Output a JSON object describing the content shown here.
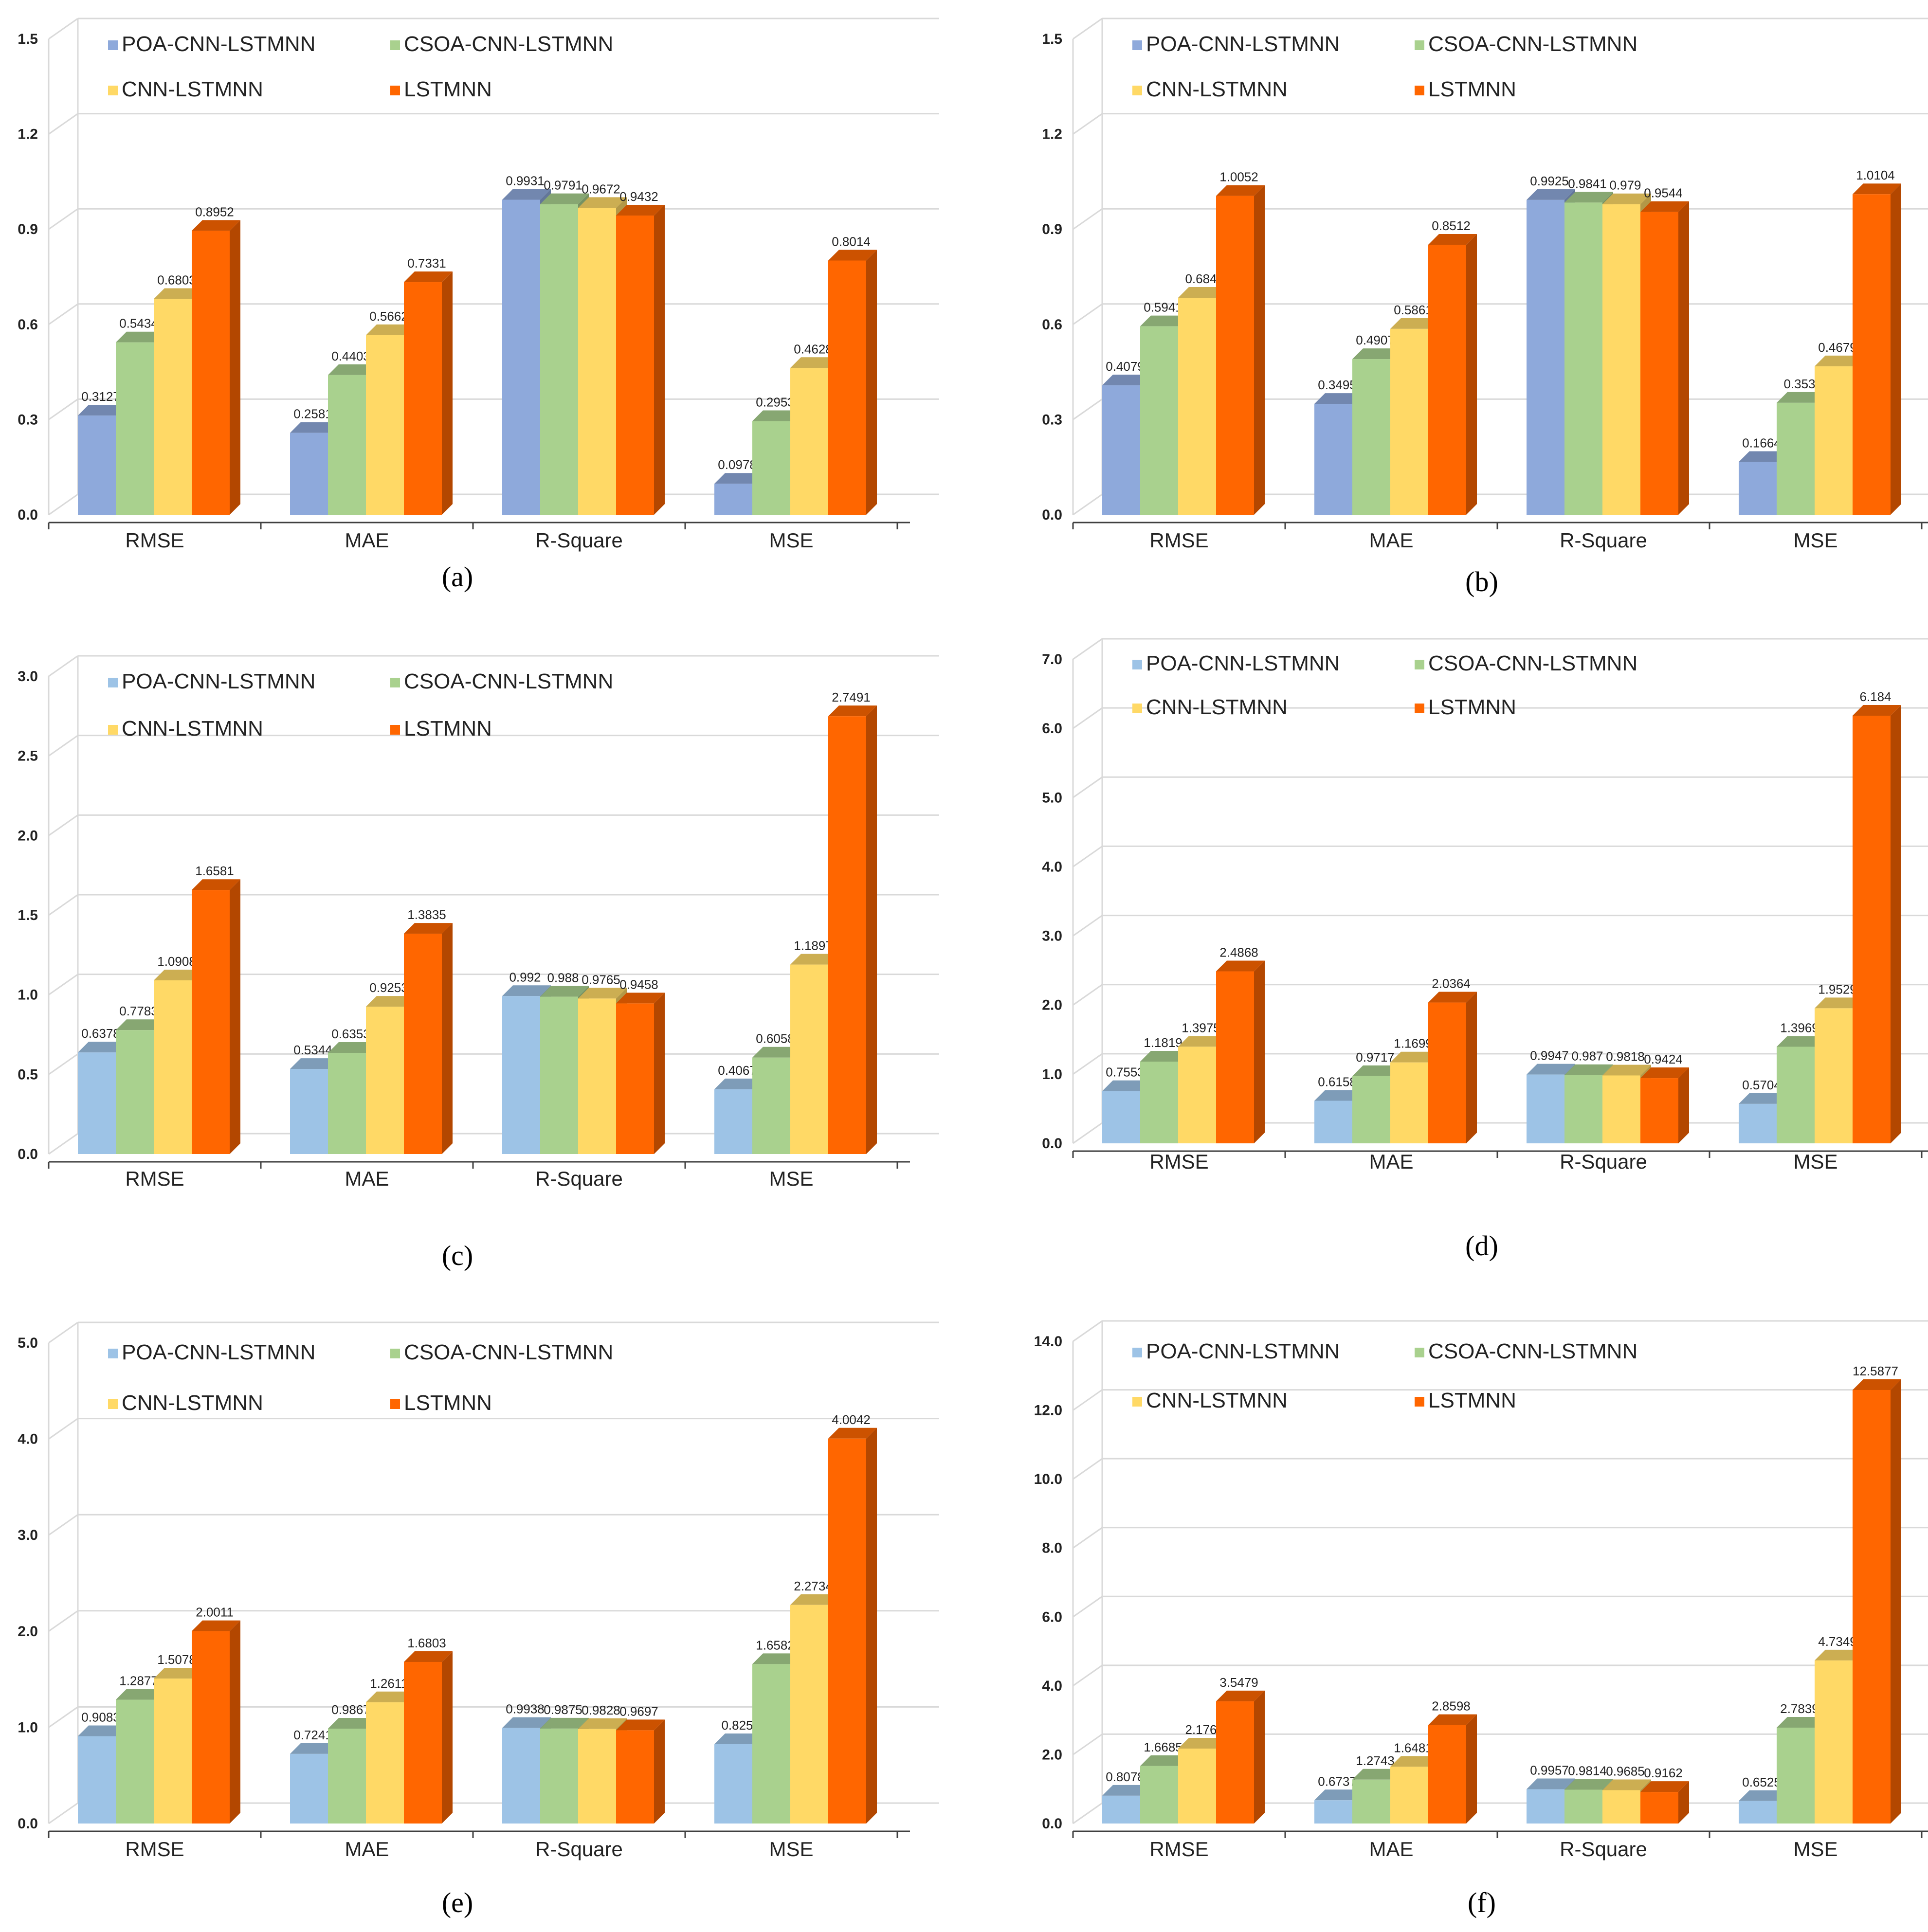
{
  "colors": {
    "POA-CNN-LSTMNN_ab": "#8EA9DB",
    "POA-CNN-LSTMNN_cf": "#9DC3E6",
    "CSOA-CNN-LSTMNN": "#A9D18E",
    "CNN-LSTMNN": "#FFD966",
    "LSTMNN": "#FF6600",
    "grid": "#D9D9D9",
    "axis": "#404040"
  },
  "chart_data": [
    {
      "panel": "a",
      "type": "bar",
      "caption": "(a)",
      "categories": [
        "RMSE",
        "MAE",
        "R-Square",
        "MSE"
      ],
      "series": [
        {
          "name": "POA-CNN-LSTMNN",
          "values": [
            0.3127,
            0.2581,
            0.9931,
            0.0978
          ],
          "labels": [
            "0.3127",
            "0.2581",
            "0.9931",
            "0.0978"
          ]
        },
        {
          "name": "CSOA-CNN-LSTMNN",
          "values": [
            0.5434,
            0.4403,
            0.9791,
            0.2953
          ],
          "labels": [
            "0.5434",
            "0.4403",
            "0.9791",
            "0.2953"
          ]
        },
        {
          "name": "CNN-LSTMNN",
          "values": [
            0.6803,
            0.5662,
            0.9672,
            0.4628
          ],
          "labels": [
            "0.6803",
            "0.5662",
            "0.9672",
            "0.4628"
          ]
        },
        {
          "name": "LSTMNN",
          "values": [
            0.8952,
            0.7331,
            0.9432,
            0.8014
          ],
          "labels": [
            "0.8952",
            "0.7331",
            "0.9432",
            "0.8014"
          ]
        }
      ],
      "ylim": [
        0,
        1.5
      ],
      "yticks": [
        "0.0",
        "0.3",
        "0.6",
        "0.9",
        "1.2",
        "1.5"
      ]
    },
    {
      "panel": "b",
      "type": "bar",
      "caption": "(b)",
      "categories": [
        "RMSE",
        "MAE",
        "R-Square",
        "MSE"
      ],
      "series": [
        {
          "name": "POA-CNN-LSTMNN",
          "values": [
            0.4079,
            0.3495,
            0.9925,
            0.1664
          ],
          "labels": [
            "0.4079",
            "0.3495",
            "0.9925",
            "0.1664"
          ]
        },
        {
          "name": "CSOA-CNN-LSTMNN",
          "values": [
            0.5941,
            0.4907,
            0.9841,
            0.353
          ],
          "labels": [
            "0.5941",
            "0.4907",
            "0.9841",
            "0.353"
          ]
        },
        {
          "name": "CNN-LSTMNN",
          "values": [
            0.684,
            0.5861,
            0.979,
            0.4679
          ],
          "labels": [
            "0.684",
            "0.5861",
            "0.979",
            "0.4679"
          ]
        },
        {
          "name": "LSTMNN",
          "values": [
            1.0052,
            0.8512,
            0.9544,
            1.0104
          ],
          "labels": [
            "1.0052",
            "0.8512",
            "0.9544",
            "1.0104"
          ]
        }
      ],
      "ylim": [
        0,
        1.5
      ],
      "yticks": [
        "0.0",
        "0.3",
        "0.6",
        "0.9",
        "1.2",
        "1.5"
      ]
    },
    {
      "panel": "c",
      "type": "bar",
      "caption": "(c)",
      "categories": [
        "RMSE",
        "MAE",
        "R-Square",
        "MSE"
      ],
      "series": [
        {
          "name": "POA-CNN-LSTMNN",
          "values": [
            0.6378,
            0.5344,
            0.992,
            0.4067
          ],
          "labels": [
            "0.6378",
            "0.5344",
            "0.992",
            "0.4067"
          ]
        },
        {
          "name": "CSOA-CNN-LSTMNN",
          "values": [
            0.7783,
            0.6353,
            0.988,
            0.6058
          ],
          "labels": [
            "0.7783",
            "0.6353",
            "0.988",
            "0.6058"
          ]
        },
        {
          "name": "CNN-LSTMNN",
          "values": [
            1.0908,
            0.9253,
            0.9765,
            1.1897
          ],
          "labels": [
            "1.0908",
            "0.9253",
            "0.9765",
            "1.1897"
          ]
        },
        {
          "name": "LSTMNN",
          "values": [
            1.6581,
            1.3835,
            0.9458,
            2.7491
          ],
          "labels": [
            "1.6581",
            "1.3835",
            "0.9458",
            "2.7491"
          ]
        }
      ],
      "ylim": [
        0,
        3.0
      ],
      "yticks": [
        "0.0",
        "0.5",
        "1.0",
        "1.5",
        "2.0",
        "2.5",
        "3.0"
      ]
    },
    {
      "panel": "d",
      "type": "bar",
      "caption": "(d)",
      "categories": [
        "RMSE",
        "MAE",
        "R-Square",
        "MSE"
      ],
      "series": [
        {
          "name": "POA-CNN-LSTMNN",
          "values": [
            0.7553,
            0.6158,
            0.9947,
            0.5704
          ],
          "labels": [
            "0.7553",
            "0.6158",
            "0.9947",
            "0.5704"
          ]
        },
        {
          "name": "CSOA-CNN-LSTMNN",
          "values": [
            1.1819,
            0.9717,
            0.987,
            1.3969
          ],
          "labels": [
            "1.1819",
            "0.9717",
            "0.987",
            "1.3969"
          ]
        },
        {
          "name": "CNN-LSTMNN",
          "values": [
            1.3975,
            1.1699,
            0.9818,
            1.9529
          ],
          "labels": [
            "1.3975",
            "1.1699",
            "0.9818",
            "1.9529"
          ]
        },
        {
          "name": "LSTMNN",
          "values": [
            2.4868,
            2.0364,
            0.9424,
            6.184
          ],
          "labels": [
            "2.4868",
            "2.0364",
            "0.9424",
            "6.184"
          ]
        }
      ],
      "ylim": [
        0,
        7.0
      ],
      "yticks": [
        "0.0",
        "1.0",
        "2.0",
        "3.0",
        "4.0",
        "5.0",
        "6.0",
        "7.0"
      ]
    },
    {
      "panel": "e",
      "type": "bar",
      "caption": "(e)",
      "categories": [
        "RMSE",
        "MAE",
        "R-Square",
        "MSE"
      ],
      "series": [
        {
          "name": "POA-CNN-LSTMNN",
          "values": [
            0.9083,
            0.7241,
            0.9938,
            0.825
          ],
          "labels": [
            "0.9083",
            "0.7241",
            "0.9938",
            "0.825"
          ]
        },
        {
          "name": "CSOA-CNN-LSTMNN",
          "values": [
            1.2877,
            0.9867,
            0.9875,
            1.6582
          ],
          "labels": [
            "1.2877",
            "0.9867",
            "0.9875",
            "1.6582"
          ]
        },
        {
          "name": "CNN-LSTMNN",
          "values": [
            1.5078,
            1.2611,
            0.9828,
            2.2734
          ],
          "labels": [
            "1.5078",
            "1.2611",
            "0.9828",
            "2.2734"
          ]
        },
        {
          "name": "LSTMNN",
          "values": [
            2.0011,
            1.6803,
            0.9697,
            4.0042
          ],
          "labels": [
            "2.0011",
            "1.6803",
            "0.9697",
            "4.0042"
          ]
        }
      ],
      "ylim": [
        0,
        5.0
      ],
      "yticks": [
        "0.0",
        "1.0",
        "2.0",
        "3.0",
        "4.0",
        "5.0"
      ]
    },
    {
      "panel": "f",
      "type": "bar",
      "caption": "(f)",
      "categories": [
        "RMSE",
        "MAE",
        "R-Square",
        "MSE"
      ],
      "series": [
        {
          "name": "POA-CNN-LSTMNN",
          "values": [
            0.8078,
            0.6737,
            0.9957,
            0.6525
          ],
          "labels": [
            "0.8078",
            "0.6737",
            "0.9957",
            "0.6525"
          ]
        },
        {
          "name": "CSOA-CNN-LSTMNN",
          "values": [
            1.6685,
            1.2743,
            0.9814,
            2.7839
          ],
          "labels": [
            "1.6685",
            "1.2743",
            "0.9814",
            "2.7839"
          ]
        },
        {
          "name": "CNN-LSTMNN",
          "values": [
            2.176,
            1.6481,
            0.9685,
            4.7349
          ],
          "labels": [
            "2.176",
            "1.6481",
            "0.9685",
            "4.7349"
          ]
        },
        {
          "name": "LSTMNN",
          "values": [
            3.5479,
            2.8598,
            0.9162,
            12.5877
          ],
          "labels": [
            "3.5479",
            "2.8598",
            "0.9162",
            "12.5877"
          ]
        }
      ],
      "ylim": [
        0,
        14.0
      ],
      "yticks": [
        "0.0",
        "2.0",
        "4.0",
        "6.0",
        "8.0",
        "10.0",
        "12.0",
        "14.0"
      ]
    }
  ]
}
